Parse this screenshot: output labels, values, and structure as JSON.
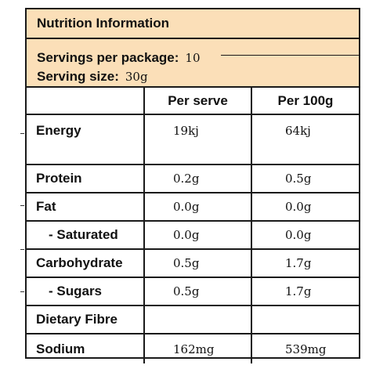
{
  "panel": {
    "title": "Nutrition Information",
    "servings_label": "Servings per package:",
    "servings_value": "10",
    "serving_size_label": "Serving size:",
    "serving_size_value": "30g",
    "band_color": "#fbdfb8"
  },
  "table": {
    "headers": [
      "",
      "Per serve",
      "Per 100g"
    ],
    "rows": [
      {
        "name": "Energy",
        "per_serve": "19kj",
        "per_100g": "64kj"
      },
      {
        "name": "Protein",
        "per_serve": "0.2g",
        "per_100g": "0.5g"
      },
      {
        "name": "Fat",
        "per_serve": "0.0g",
        "per_100g": "0.0g"
      },
      {
        "name": "- Saturated",
        "per_serve": "0.0g",
        "per_100g": "0.0g"
      },
      {
        "name": "Carbohydrate",
        "per_serve": "0.5g",
        "per_100g": "1.7g"
      },
      {
        "name": "- Sugars",
        "per_serve": "0.5g",
        "per_100g": "1.7g"
      },
      {
        "name": "Dietary Fibre",
        "per_serve": "",
        "per_100g": ""
      },
      {
        "name": "Sodium",
        "per_serve": "162mg",
        "per_100g": "539mg"
      }
    ]
  }
}
